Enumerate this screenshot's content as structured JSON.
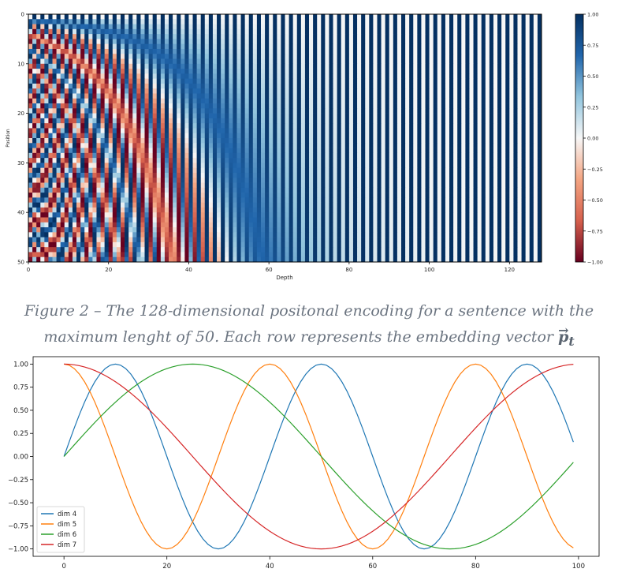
{
  "chart_data": [
    {
      "type": "heatmap",
      "title": "",
      "xlabel": "Depth",
      "ylabel": "Position",
      "xlim": [
        0,
        128
      ],
      "ylim": [
        50,
        0
      ],
      "x_ticks": [
        "0",
        "20",
        "40",
        "60",
        "80",
        "100",
        "120"
      ],
      "y_ticks": [
        "0",
        "10",
        "20",
        "30",
        "40",
        "50"
      ],
      "rows": 50,
      "cols": 128,
      "function": "PE(pos, 2i) = sin(pos / 10000^(2i/128)), PE(pos, 2i+1) = cos(pos / 10000^(2i/128))",
      "colormap": "RdBu",
      "colormap_stops": [
        "#67001f",
        "#d6604d",
        "#f4a582",
        "#f7f7f7",
        "#92c5de",
        "#2166ac",
        "#053061"
      ],
      "colorbar": {
        "range": [
          -1.0,
          1.0
        ],
        "ticks": [
          "1.00",
          "0.75",
          "0.50",
          "0.25",
          "0.00",
          "−0.25",
          "−0.50",
          "−0.75",
          "−1.00"
        ]
      }
    },
    {
      "type": "line",
      "title": "",
      "xlabel": "",
      "ylabel": "",
      "xlim": [
        -6,
        104
      ],
      "ylim": [
        -1.08,
        1.08
      ],
      "x_ticks": [
        "0",
        "20",
        "40",
        "60",
        "80",
        "100"
      ],
      "y_ticks": [
        "1.00",
        "0.75",
        "0.50",
        "0.25",
        "0.00",
        "−0.25",
        "−0.50",
        "−0.75",
        "−1.00"
      ],
      "legend_position": "bottom-left",
      "x": {
        "start": 0,
        "end": 99,
        "step": 1
      },
      "series": [
        {
          "name": "dim 4",
          "color": "#1f77b4",
          "function": "sin",
          "period": 40,
          "phase": 0
        },
        {
          "name": "dim 5",
          "color": "#ff7f0e",
          "function": "cos",
          "period": 40,
          "phase": 0
        },
        {
          "name": "dim 6",
          "color": "#2ca02c",
          "function": "sin",
          "period": 100,
          "phase": 0
        },
        {
          "name": "dim 7",
          "color": "#d62728",
          "function": "cos",
          "period": 100,
          "phase": 0
        }
      ]
    }
  ],
  "caption": {
    "line1": "Figure 2 – The 128-dimensional positonal encoding for a sentence with the",
    "line2": "maximum lenght of 50. Each row represents the embedding vector",
    "symbol": "p",
    "symbol_subscript": "t",
    "symbol_arrow": "→"
  }
}
